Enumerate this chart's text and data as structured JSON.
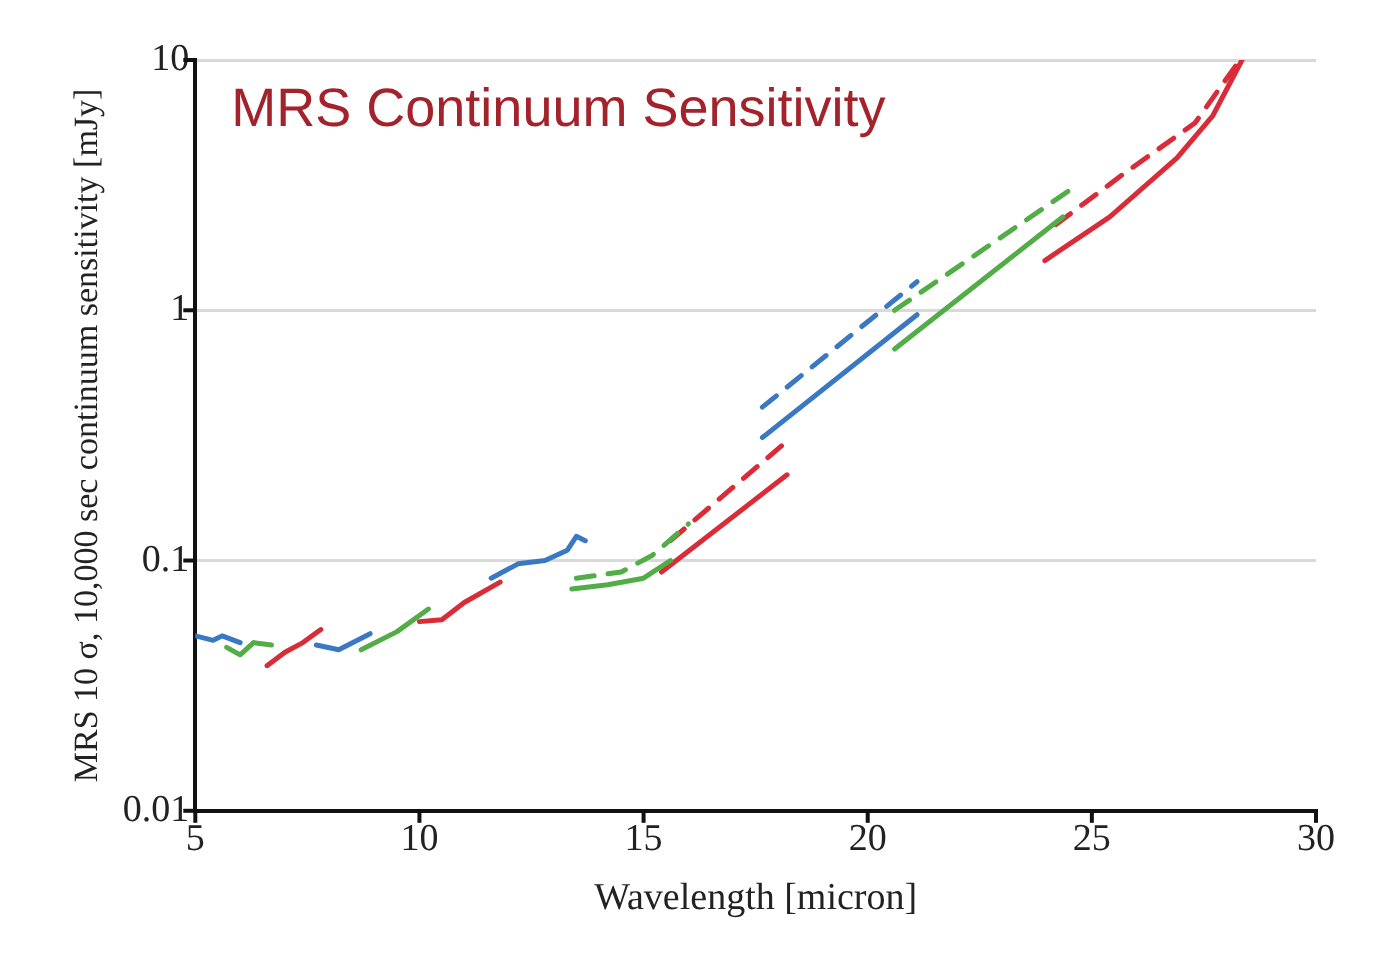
{
  "chart_data": {
    "type": "line",
    "title": "MRS Continuum Sensitivity",
    "xlabel": "Wavelength [micron]",
    "ylabel": "MRS 10 σ, 10,000 sec continuum sensitivity [mJy]",
    "log": "y",
    "grid": "y",
    "legend": false,
    "marker": "none",
    "xlim": [
      5,
      30
    ],
    "xticks": [
      5,
      10,
      15,
      20,
      25,
      30
    ],
    "ylim": [
      0.01,
      10
    ],
    "yticks": [
      0.01,
      0.1,
      1,
      10
    ],
    "series": [
      {
        "color": "#3a78c3",
        "line_style": "solid",
        "x": [
          5.0,
          5.4,
          5.6,
          6.0
        ],
        "values": [
          0.05,
          0.048,
          0.05,
          0.047
        ]
      },
      {
        "color": "#52ad47",
        "line_style": "solid",
        "x": [
          5.7,
          6.0,
          6.3,
          6.7
        ],
        "values": [
          0.045,
          0.042,
          0.047,
          0.046
        ]
      },
      {
        "color": "#d92b38",
        "line_style": "solid",
        "x": [
          6.6,
          7.0,
          7.4,
          7.8
        ],
        "values": [
          0.038,
          0.043,
          0.047,
          0.053
        ]
      },
      {
        "color": "#3a78c3",
        "line_style": "solid",
        "x": [
          7.7,
          8.2,
          8.9
        ],
        "values": [
          0.046,
          0.044,
          0.051
        ]
      },
      {
        "color": "#52ad47",
        "line_style": "solid",
        "x": [
          8.7,
          9.5,
          10.2
        ],
        "values": [
          0.044,
          0.052,
          0.064
        ]
      },
      {
        "color": "#d92b38",
        "line_style": "solid",
        "x": [
          10.0,
          10.5,
          11.0,
          11.8
        ],
        "values": [
          0.057,
          0.058,
          0.068,
          0.082
        ]
      },
      {
        "color": "#3a78c3",
        "line_style": "solid",
        "x": [
          11.6,
          12.2,
          12.8,
          13.3,
          13.5,
          13.7
        ],
        "values": [
          0.085,
          0.097,
          0.1,
          0.11,
          0.125,
          0.12
        ]
      },
      {
        "color": "#52ad47",
        "line_style": "solid",
        "x": [
          13.4,
          14.2,
          15.0,
          15.6
        ],
        "values": [
          0.077,
          0.08,
          0.085,
          0.1
        ]
      },
      {
        "color": "#52ad47",
        "line_style": "dashed",
        "x": [
          13.5,
          14.5,
          15.2,
          16.0
        ],
        "values": [
          0.085,
          0.09,
          0.105,
          0.14
        ]
      },
      {
        "color": "#d92b38",
        "line_style": "solid",
        "x": [
          15.4,
          18.2
        ],
        "values": [
          0.09,
          0.22
        ]
      },
      {
        "color": "#d92b38",
        "line_style": "dashed",
        "x": [
          15.6,
          18.2
        ],
        "values": [
          0.12,
          0.3
        ]
      },
      {
        "color": "#3a78c3",
        "line_style": "solid",
        "x": [
          17.65,
          21.1
        ],
        "values": [
          0.31,
          0.96
        ]
      },
      {
        "color": "#3a78c3",
        "line_style": "dashed",
        "x": [
          17.65,
          21.1
        ],
        "values": [
          0.41,
          1.3
        ]
      },
      {
        "color": "#52ad47",
        "line_style": "solid",
        "x": [
          20.6,
          24.35
        ],
        "values": [
          0.7,
          2.36
        ]
      },
      {
        "color": "#52ad47",
        "line_style": "dashed",
        "x": [
          20.6,
          24.6
        ],
        "values": [
          1.0,
          3.1
        ]
      },
      {
        "color": "#d92b38",
        "line_style": "solid",
        "x": [
          23.95,
          25.4,
          26.9,
          27.7,
          28.35
        ],
        "values": [
          1.58,
          2.36,
          4.06,
          6.0,
          10
        ]
      },
      {
        "color": "#d92b38",
        "line_style": "dashed",
        "x": [
          24.2,
          25.7,
          27.3,
          28.3
        ],
        "values": [
          2.2,
          3.5,
          5.6,
          10
        ]
      }
    ]
  }
}
